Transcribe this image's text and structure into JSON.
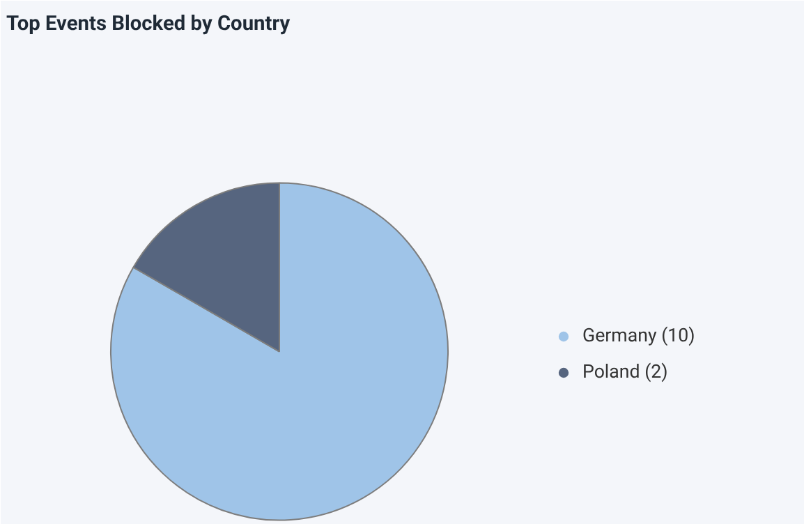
{
  "chart_data": {
    "type": "pie",
    "title": "Top Events Blocked by Country",
    "categories": [
      "Germany (10)",
      "Poland (2)"
    ],
    "values": [
      10,
      2
    ],
    "colors": [
      "#9fc4e8",
      "#56657f"
    ],
    "legend": "right"
  }
}
